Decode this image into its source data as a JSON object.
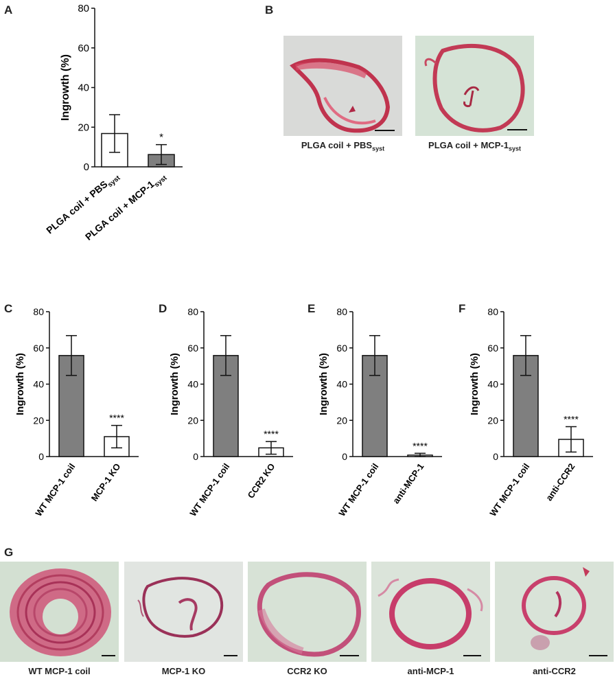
{
  "panels": {
    "A": "A",
    "B": "B",
    "C": "C",
    "D": "D",
    "E": "E",
    "F": "F",
    "G": "G"
  },
  "chart_data": [
    {
      "type": "bar",
      "panel": "A",
      "ylabel": "Ingrowth (%)",
      "ylim": [
        0,
        80
      ],
      "yticks": [
        0,
        20,
        40,
        60,
        80
      ],
      "categories": [
        "PLGA coil + PBS",
        "PLGA coil + MCP-1"
      ],
      "category_subscripts": [
        "syst",
        "syst"
      ],
      "values": [
        16.8,
        6.2
      ],
      "errors": [
        9.5,
        5.0
      ],
      "bar_colors": [
        "#ffffff",
        "#7f7f7f"
      ],
      "significance": [
        "",
        "*"
      ]
    },
    {
      "type": "bar",
      "panel": "C",
      "ylabel": "Ingrowth (%)",
      "ylim": [
        0,
        80
      ],
      "yticks": [
        0,
        20,
        40,
        60,
        80
      ],
      "categories": [
        "WT MCP-1 coil",
        "MCP-1 KO"
      ],
      "values": [
        55.8,
        11.0
      ],
      "errors": [
        11.0,
        6.2
      ],
      "bar_colors": [
        "#7f7f7f",
        "#ffffff"
      ],
      "significance": [
        "",
        "****"
      ]
    },
    {
      "type": "bar",
      "panel": "D",
      "ylabel": "Ingrowth (%)",
      "ylim": [
        0,
        80
      ],
      "yticks": [
        0,
        20,
        40,
        60,
        80
      ],
      "categories": [
        "WT MCP-1 coil",
        "CCR2 KO"
      ],
      "values": [
        55.8,
        4.8
      ],
      "errors": [
        11.0,
        3.5
      ],
      "bar_colors": [
        "#7f7f7f",
        "#ffffff"
      ],
      "significance": [
        "",
        "****"
      ]
    },
    {
      "type": "bar",
      "panel": "E",
      "ylabel": "Ingrowth (%)",
      "ylim": [
        0,
        80
      ],
      "yticks": [
        0,
        20,
        40,
        60,
        80
      ],
      "categories": [
        "WT MCP-1 coil",
        "anti-MCP-1"
      ],
      "values": [
        55.8,
        0.8
      ],
      "errors": [
        11.0,
        1.0
      ],
      "bar_colors": [
        "#7f7f7f",
        "#ffffff"
      ],
      "significance": [
        "",
        "****"
      ]
    },
    {
      "type": "bar",
      "panel": "F",
      "ylabel": "Ingrowth (%)",
      "ylim": [
        0,
        80
      ],
      "yticks": [
        0,
        20,
        40,
        60,
        80
      ],
      "categories": [
        "WT MCP-1 coil",
        "anti-CCR2"
      ],
      "values": [
        55.8,
        9.5
      ],
      "errors": [
        11.0,
        7.0
      ],
      "bar_colors": [
        "#7f7f7f",
        "#ffffff"
      ],
      "significance": [
        "",
        "****"
      ]
    }
  ],
  "micrographs_B": [
    {
      "caption": "PLGA coil + PBS",
      "sub": "syst"
    },
    {
      "caption": "PLGA coil + MCP-1",
      "sub": "syst"
    }
  ],
  "micrographs_G": [
    {
      "caption": "WT MCP-1 coil"
    },
    {
      "caption": "MCP-1 KO"
    },
    {
      "caption": "CCR2 KO"
    },
    {
      "caption": "anti-MCP-1"
    },
    {
      "caption": "anti-CCR2"
    }
  ]
}
